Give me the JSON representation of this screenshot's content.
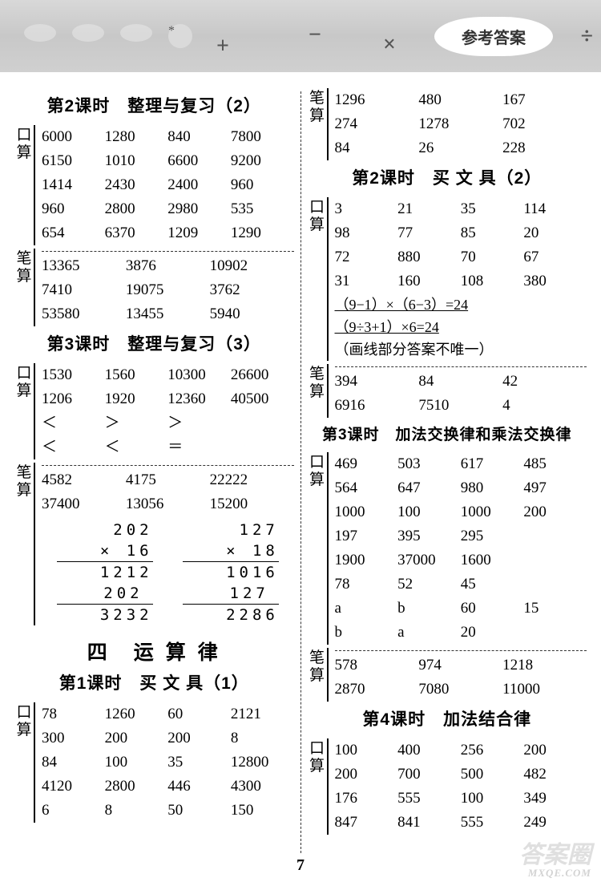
{
  "banner": {
    "pill": "参考答案",
    "plus": "+",
    "minus": "−",
    "times": "×",
    "div": "÷"
  },
  "page_num": "7",
  "watermark": {
    "line1": "答案圈",
    "line2": "MXQE.COM"
  },
  "L": {
    "t2": "第2课时　整理与复习（2）",
    "k2a": [
      [
        "6000",
        "1280",
        "840",
        "7800"
      ],
      [
        "6150",
        "1010",
        "6600",
        "9200"
      ],
      [
        "1414",
        "2430",
        "2400",
        "960"
      ],
      [
        "960",
        "2800",
        "2980",
        "535"
      ],
      [
        "654",
        "6370",
        "1209",
        "1290"
      ]
    ],
    "b2a": [
      [
        "13365",
        "3876",
        "10902"
      ],
      [
        "7410",
        "19075",
        "3762"
      ],
      [
        "53580",
        "13455",
        "5940"
      ]
    ],
    "t3": "第3课时　整理与复习（3）",
    "k3a": [
      [
        "1530",
        "1560",
        "10300",
        "26600"
      ],
      [
        "1206",
        "1920",
        "12360",
        "40500"
      ],
      [
        "＜",
        "＞",
        "＞",
        ""
      ],
      [
        "＜",
        "＜",
        "＝",
        ""
      ]
    ],
    "b3a": [
      [
        "4582",
        "4175",
        "22222"
      ],
      [
        "37400",
        "13056",
        "15200"
      ]
    ],
    "vm1": {
      "a": "202",
      "b": "16",
      "p1": "1212",
      "p2": "202",
      "res": "3232"
    },
    "vm2": {
      "a": "127",
      "b": "18",
      "p1": "1016",
      "p2": "127",
      "res": "2286"
    },
    "tBig": "四　运 算 律",
    "t1": "第1课时　买 文 具（1）",
    "k1a": [
      [
        "78",
        "1260",
        "60",
        "2121"
      ],
      [
        "300",
        "200",
        "200",
        "8"
      ],
      [
        "84",
        "100",
        "35",
        "12800"
      ],
      [
        "4120",
        "2800",
        "446",
        "4300"
      ],
      [
        "6",
        "8",
        "50",
        "150"
      ]
    ]
  },
  "R": {
    "b_top": [
      [
        "1296",
        "480",
        "167"
      ],
      [
        "274",
        "1278",
        "702"
      ],
      [
        "84",
        "26",
        "228"
      ]
    ],
    "t2": "第2课时　买 文 具（2）",
    "k2": [
      [
        "3",
        "21",
        "35",
        "114"
      ],
      [
        "98",
        "77",
        "85",
        "20"
      ],
      [
        "72",
        "880",
        "70",
        "67"
      ],
      [
        "31",
        "160",
        "108",
        "380"
      ]
    ],
    "eq1": "（9−1）×（6−3）=24",
    "eq2": "（9÷3+1）×6=24",
    "eq3": "（画线部分答案不唯一）",
    "b2": [
      [
        "394",
        "84",
        "42"
      ],
      [
        "6916",
        "7510",
        "4"
      ]
    ],
    "t3": "第3课时　加法交换律和乘法交换律",
    "k3": [
      [
        "469",
        "503",
        "617",
        "485"
      ],
      [
        "564",
        "647",
        "980",
        "497"
      ],
      [
        "1000",
        "100",
        "1000",
        "200"
      ],
      [
        "197",
        "395",
        "295",
        ""
      ],
      [
        "1900",
        "37000",
        "1600",
        ""
      ],
      [
        "78",
        "52",
        "45",
        ""
      ],
      [
        "a",
        "b",
        "60",
        "15"
      ],
      [
        "b",
        "a",
        "20",
        ""
      ]
    ],
    "b3": [
      [
        "578",
        "974",
        "1218"
      ],
      [
        "2870",
        "7080",
        "11000"
      ]
    ],
    "t4": "第4课时　加法结合律",
    "k4": [
      [
        "100",
        "400",
        "256",
        "200"
      ],
      [
        "200",
        "700",
        "500",
        "482"
      ],
      [
        "176",
        "555",
        "100",
        "349"
      ],
      [
        "847",
        "841",
        "555",
        "249"
      ]
    ]
  },
  "labels": {
    "kou": "口",
    "suan": "算",
    "bi": "笔"
  }
}
